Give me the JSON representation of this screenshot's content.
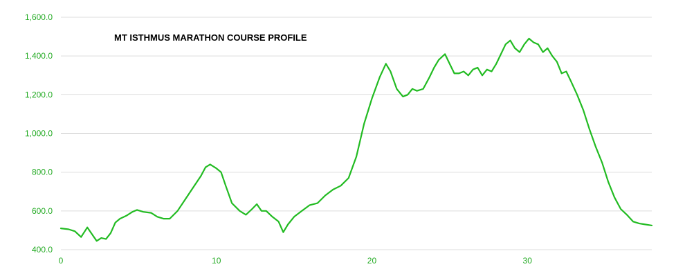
{
  "chart_data": {
    "type": "line",
    "title": "MT ISTHMUS MARATHON COURSE PROFILE",
    "xlabel": "",
    "ylabel": "",
    "xlim": [
      0,
      38
    ],
    "ylim": [
      400,
      1600
    ],
    "x_ticks": [
      0,
      10,
      20,
      30
    ],
    "x_tick_labels": [
      "0",
      "10",
      "20",
      "30"
    ],
    "y_ticks": [
      400,
      600,
      800,
      1000,
      1200,
      1400,
      1600
    ],
    "y_tick_labels": [
      "400.0",
      "600.0",
      "800.0",
      "1,000.0",
      "1,200.0",
      "1,400.0",
      "1,600.0"
    ],
    "grid": true,
    "line_color": "#22bb22",
    "tick_color": "#22aa22",
    "series": [
      {
        "x": [
          0,
          0.5,
          0.9,
          1.3,
          1.7,
          2.0,
          2.3,
          2.6,
          2.9,
          3.2,
          3.5,
          3.8,
          4.2,
          4.6,
          4.9,
          5.3,
          5.8,
          6.2,
          6.6,
          7.0,
          7.5,
          8.0,
          8.5,
          9.0,
          9.3,
          9.6,
          10.0,
          10.3,
          10.6,
          11.0,
          11.5,
          11.9,
          12.3,
          12.6,
          12.9,
          13.2,
          13.6,
          14.0,
          14.3,
          14.6,
          15.0,
          15.5,
          16.0,
          16.5,
          17.0,
          17.5,
          18.0,
          18.5,
          19.0,
          19.5,
          20.0,
          20.5,
          20.9,
          21.2,
          21.6,
          22.0,
          22.3,
          22.6,
          22.9,
          23.3,
          23.7,
          24.0,
          24.3,
          24.7,
          25.0,
          25.3,
          25.6,
          25.9,
          26.2,
          26.5,
          26.8,
          27.1,
          27.4,
          27.7,
          28.0,
          28.3,
          28.6,
          28.9,
          29.2,
          29.5,
          29.8,
          30.1,
          30.4,
          30.7,
          31.0,
          31.3,
          31.6,
          31.9,
          32.2,
          32.5,
          32.8,
          33.2,
          33.6,
          34.0,
          34.4,
          34.8,
          35.2,
          35.6,
          36.0,
          36.4,
          36.8,
          37.2,
          37.6,
          38.0
        ],
        "y": [
          510,
          505,
          495,
          465,
          515,
          480,
          445,
          460,
          455,
          485,
          540,
          560,
          575,
          595,
          605,
          595,
          590,
          570,
          560,
          560,
          600,
          660,
          720,
          780,
          825,
          840,
          820,
          800,
          730,
          640,
          600,
          580,
          610,
          635,
          600,
          600,
          570,
          545,
          490,
          530,
          570,
          600,
          630,
          640,
          680,
          710,
          730,
          770,
          880,
          1050,
          1180,
          1290,
          1360,
          1320,
          1230,
          1190,
          1200,
          1230,
          1220,
          1230,
          1290,
          1340,
          1380,
          1410,
          1360,
          1310,
          1310,
          1320,
          1300,
          1330,
          1340,
          1300,
          1330,
          1320,
          1360,
          1410,
          1460,
          1480,
          1440,
          1420,
          1460,
          1490,
          1470,
          1460,
          1420,
          1440,
          1400,
          1370,
          1310,
          1320,
          1270,
          1200,
          1120,
          1020,
          930,
          850,
          750,
          670,
          610,
          580,
          545,
          535,
          530,
          525
        ]
      }
    ]
  }
}
